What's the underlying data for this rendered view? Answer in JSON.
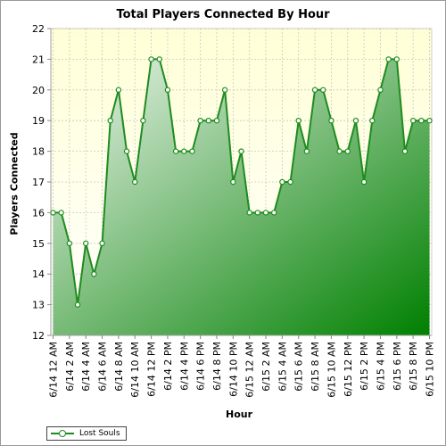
{
  "chart_data": {
    "type": "area",
    "title": "Total Players Connected By Hour",
    "xlabel": "Hour",
    "ylabel": "Players Connected",
    "ylim": [
      12,
      22
    ],
    "yticks": [
      12,
      13,
      14,
      15,
      16,
      17,
      18,
      19,
      20,
      21,
      22
    ],
    "grid": true,
    "legend_position": "bottom-left",
    "x_tick_labels": [
      "6/14 12 AM",
      "6/14 2 AM",
      "6/14 4 AM",
      "6/14 6 AM",
      "6/14 8 AM",
      "6/14 10 AM",
      "6/14 12 PM",
      "6/14 2 PM",
      "6/14 4 PM",
      "6/14 6 PM",
      "6/14 8 PM",
      "6/14 10 PM",
      "6/15 12 AM",
      "6/15 2 AM",
      "6/15 4 AM",
      "6/15 6 AM",
      "6/15 8 AM",
      "6/15 10 AM",
      "6/15 12 PM",
      "6/15 2 PM",
      "6/15 4 PM",
      "6/15 6 PM",
      "6/15 8 PM",
      "6/15 10 PM"
    ],
    "series": [
      {
        "name": "Lost Souls",
        "color": "#1e8c1e",
        "values": [
          16,
          16,
          15,
          13,
          15,
          14,
          15,
          19,
          20,
          18,
          17,
          19,
          21,
          21,
          20,
          18,
          18,
          18,
          19,
          19,
          19,
          20,
          17,
          18,
          16,
          16,
          16,
          16,
          17,
          17,
          19,
          18,
          20,
          20,
          19,
          18,
          18,
          19,
          17,
          19,
          20,
          21,
          21,
          18,
          19,
          19,
          19
        ]
      }
    ]
  },
  "colors": {
    "plot_background_top": "#ffffd6",
    "plot_background_bottom": "#ffffff",
    "area_light": "#eef5ee",
    "area_dark": "#008000",
    "line": "#1e8c1e",
    "grid": "#c8c8c8"
  }
}
